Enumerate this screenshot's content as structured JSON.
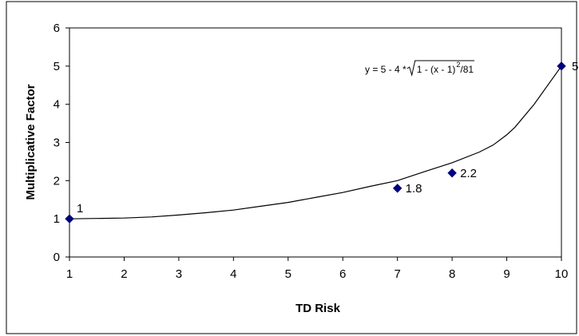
{
  "chart_data": {
    "type": "scatter",
    "xlabel": "TD Risk",
    "ylabel": "Multiplicative Factor",
    "xlim": [
      1,
      10
    ],
    "ylim": [
      0,
      6
    ],
    "x_ticks": [
      1,
      2,
      3,
      4,
      5,
      6,
      7,
      8,
      9,
      10
    ],
    "y_ticks": [
      0,
      1,
      2,
      3,
      4,
      5,
      6
    ],
    "grid": false,
    "marker_color": "#000080",
    "line_color": "#000000",
    "points": [
      {
        "x": 1,
        "y": 1,
        "label": "1"
      },
      {
        "x": 7,
        "y": 1.8,
        "label": "1.8"
      },
      {
        "x": 8,
        "y": 2.2,
        "label": "2.2"
      },
      {
        "x": 10,
        "y": 5,
        "label": "5"
      }
    ],
    "curve": {
      "equation_parts": {
        "lhs": "y = 5 - 4 * ",
        "radicand": "1 - (x - 1)",
        "exponent": "2",
        "tail": " /81"
      },
      "samples": [
        {
          "x": 1,
          "y": 1
        },
        {
          "x": 1.5,
          "y": 1.01
        },
        {
          "x": 2,
          "y": 1.02
        },
        {
          "x": 2.5,
          "y": 1.05
        },
        {
          "x": 3,
          "y": 1.1
        },
        {
          "x": 3.5,
          "y": 1.16
        },
        {
          "x": 4,
          "y": 1.23
        },
        {
          "x": 4.5,
          "y": 1.33
        },
        {
          "x": 5,
          "y": 1.43
        },
        {
          "x": 5.5,
          "y": 1.56
        },
        {
          "x": 6,
          "y": 1.69
        },
        {
          "x": 6.5,
          "y": 1.85
        },
        {
          "x": 7,
          "y": 2.0
        },
        {
          "x": 7.5,
          "y": 2.24
        },
        {
          "x": 8,
          "y": 2.47
        },
        {
          "x": 8.5,
          "y": 2.75
        },
        {
          "x": 8.75,
          "y": 2.93
        },
        {
          "x": 9,
          "y": 3.2
        },
        {
          "x": 9.15,
          "y": 3.4
        },
        {
          "x": 9.5,
          "y": 4.0
        },
        {
          "x": 10,
          "y": 5.0
        }
      ]
    }
  }
}
